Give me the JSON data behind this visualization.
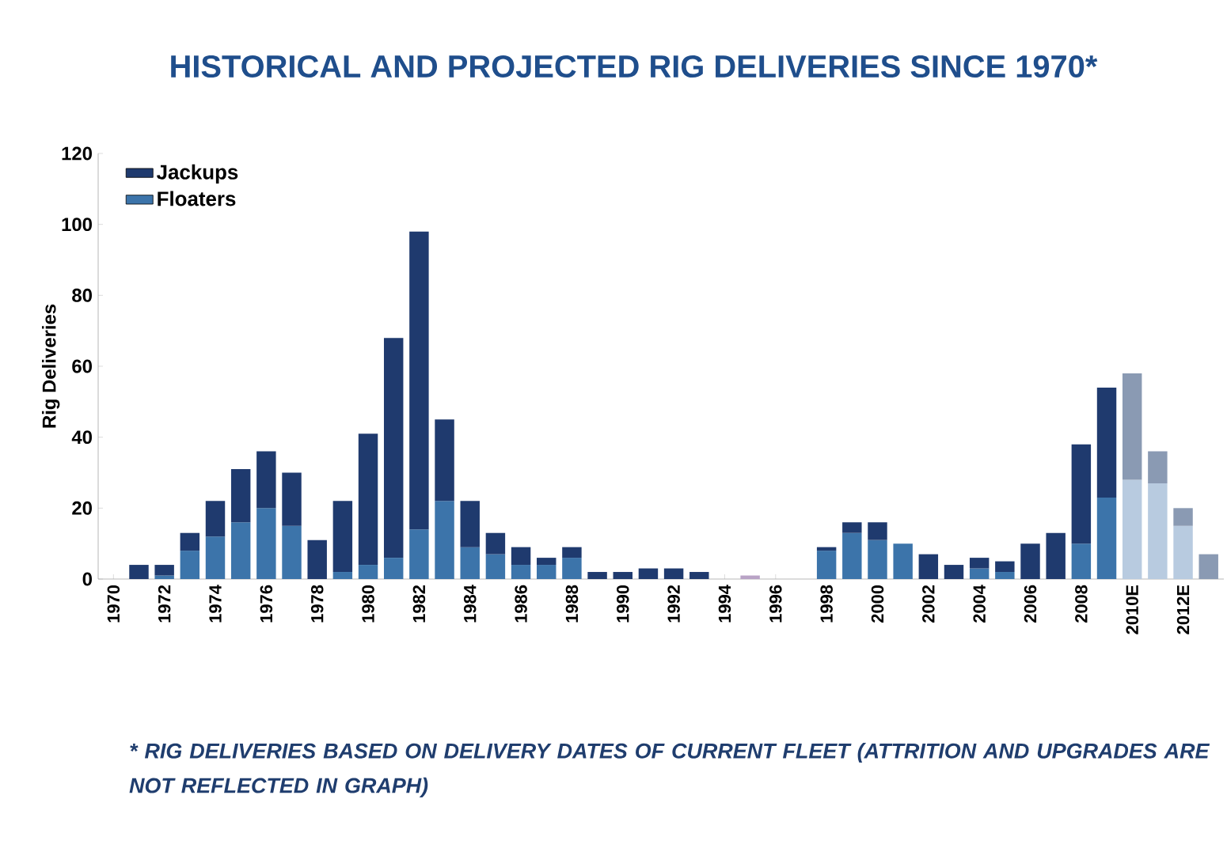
{
  "chart_data": {
    "type": "bar",
    "title": "HISTORICAL AND PROJECTED RIG DELIVERIES SINCE 1970*",
    "ylabel": "Rig Deliveries",
    "annotations": [
      "* RIG DELIVERIES BASED ON DELIVERY DATES OF CURRENT FLEET (ATTRITION AND UPGRADES ARE NOT REFLECTED IN GRAPH)"
    ],
    "categories": [
      "1970",
      null,
      "1972",
      null,
      "1974",
      null,
      "1976",
      null,
      "1978",
      null,
      "1980",
      null,
      "1982",
      null,
      "1984",
      null,
      "1986",
      null,
      "1988",
      null,
      "1990",
      null,
      "1992",
      null,
      "1994",
      null,
      "1996",
      null,
      "1998",
      null,
      "2000",
      null,
      "2002",
      null,
      "2004",
      null,
      "2006",
      null,
      "2008",
      null,
      "2010E",
      null,
      "2012E",
      null
    ],
    "stacked": true,
    "legend": "top left",
    "ylim": [
      0,
      120
    ],
    "yticks": [
      0,
      20,
      40,
      60,
      80,
      100,
      120
    ],
    "series": [
      {
        "name": "Floaters",
        "color": "#3c74aa",
        "values": [
          0,
          0,
          1,
          8,
          12,
          16,
          20,
          15,
          0,
          2,
          4,
          6,
          14,
          22,
          9,
          7,
          4,
          4,
          6,
          0,
          0,
          0,
          0,
          0,
          0,
          1,
          0,
          0,
          8,
          13,
          11,
          10,
          0,
          0,
          3,
          2,
          0,
          0,
          10,
          23,
          28,
          27,
          15,
          0
        ],
        "colors": [
          "#3c74aa",
          "#3c74aa",
          "#3c74aa",
          "#3c74aa",
          "#3c74aa",
          "#3c74aa",
          "#3c74aa",
          "#3c74aa",
          "#3c74aa",
          "#3c74aa",
          "#3c74aa",
          "#3c74aa",
          "#3c74aa",
          "#3c74aa",
          "#3c74aa",
          "#3c74aa",
          "#3c74aa",
          "#3c74aa",
          "#3c74aa",
          "#3c74aa",
          "#3c74aa",
          "#3c74aa",
          "#3c74aa",
          "#3c74aa",
          "#3c74aa",
          "#b9a3c6",
          "#3c74aa",
          "#3c74aa",
          "#3c74aa",
          "#3c74aa",
          "#3c74aa",
          "#3c74aa",
          "#3c74aa",
          "#3c74aa",
          "#3c74aa",
          "#3c74aa",
          "#3c74aa",
          "#3c74aa",
          "#3c74aa",
          "#3c74aa",
          "#b8cbe0",
          "#b8cbe0",
          "#b8cbe0",
          "#b8cbe0"
        ]
      },
      {
        "name": "Jackups",
        "color": "#1f3a6e",
        "values": [
          0,
          4,
          3,
          5,
          10,
          15,
          16,
          15,
          11,
          20,
          37,
          62,
          84,
          23,
          13,
          6,
          5,
          2,
          3,
          2,
          2,
          3,
          3,
          2,
          0,
          0,
          0,
          0,
          1,
          3,
          5,
          0,
          7,
          4,
          3,
          3,
          10,
          13,
          28,
          31,
          30,
          9,
          5,
          7
        ],
        "colors": [
          "#1f3a6e",
          "#1f3a6e",
          "#1f3a6e",
          "#1f3a6e",
          "#1f3a6e",
          "#1f3a6e",
          "#1f3a6e",
          "#1f3a6e",
          "#1f3a6e",
          "#1f3a6e",
          "#1f3a6e",
          "#1f3a6e",
          "#1f3a6e",
          "#1f3a6e",
          "#1f3a6e",
          "#1f3a6e",
          "#1f3a6e",
          "#1f3a6e",
          "#1f3a6e",
          "#1f3a6e",
          "#1f3a6e",
          "#1f3a6e",
          "#1f3a6e",
          "#1f3a6e",
          "#1f3a6e",
          "#1f3a6e",
          "#1f3a6e",
          "#1f3a6e",
          "#1f3a6e",
          "#1f3a6e",
          "#1f3a6e",
          "#1f3a6e",
          "#1f3a6e",
          "#1f3a6e",
          "#1f3a6e",
          "#1f3a6e",
          "#1f3a6e",
          "#1f3a6e",
          "#1f3a6e",
          "#1f3a6e",
          "#8a9ab3",
          "#8a9ab3",
          "#8a9ab3",
          "#8a9ab3"
        ]
      }
    ]
  }
}
